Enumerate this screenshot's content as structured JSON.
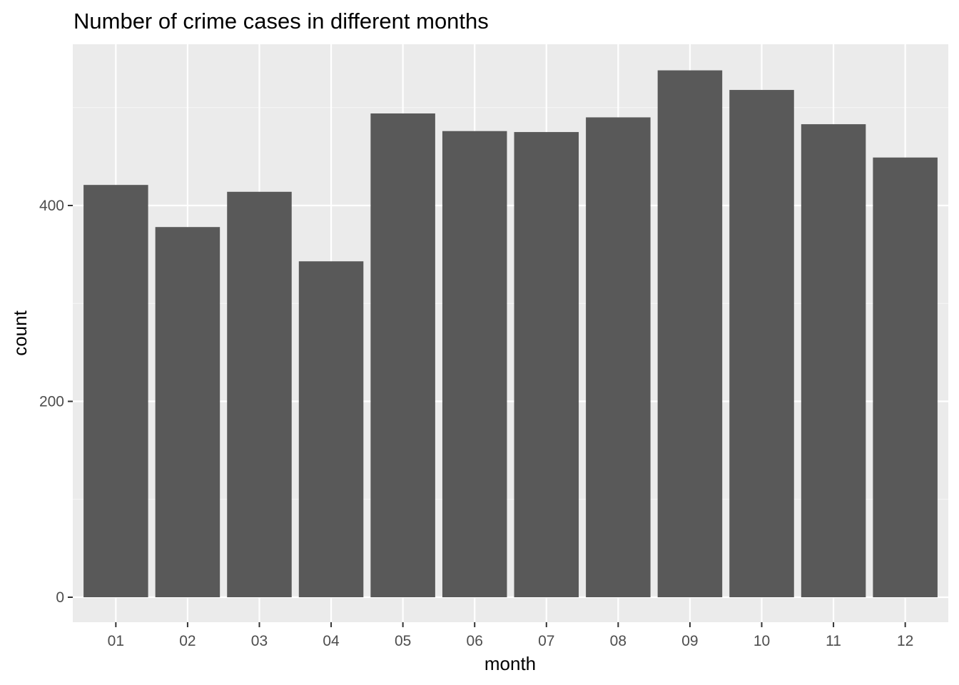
{
  "chart_data": {
    "type": "bar",
    "title": "Number of crime cases in different months",
    "xlabel": "month",
    "ylabel": "count",
    "categories": [
      "01",
      "02",
      "03",
      "04",
      "05",
      "06",
      "07",
      "08",
      "09",
      "10",
      "11",
      "12"
    ],
    "values": [
      421,
      378,
      414,
      343,
      494,
      476,
      475,
      490,
      538,
      518,
      483,
      449
    ],
    "ylim": [
      0,
      550
    ],
    "yticks": [
      0,
      200,
      400
    ],
    "grid": true,
    "colors": {
      "bar": "#595959",
      "panel": "#ebebeb",
      "grid_major": "#ffffff",
      "grid_minor": "#f5f5f5"
    }
  }
}
